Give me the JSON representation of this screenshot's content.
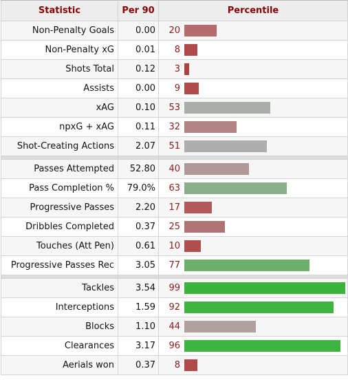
{
  "table": {
    "headers": {
      "statistic": "Statistic",
      "per90": "Per 90",
      "percentile": "Percentile"
    },
    "groups": [
      [
        {
          "stat": "Non-Penalty Goals",
          "per90": "0.00",
          "percentile": 20,
          "bar_color": "#b36b6b"
        },
        {
          "stat": "Non-Penalty xG",
          "per90": "0.01",
          "percentile": 8,
          "bar_color": "#b04a4a"
        },
        {
          "stat": "Shots Total",
          "per90": "0.12",
          "percentile": 3,
          "bar_color": "#ad4141"
        },
        {
          "stat": "Assists",
          "per90": "0.00",
          "percentile": 9,
          "bar_color": "#b04b4b"
        },
        {
          "stat": "xAG",
          "per90": "0.10",
          "percentile": 53,
          "bar_color": "#a9aea9"
        },
        {
          "stat": "npxG + xAG",
          "per90": "0.11",
          "percentile": 32,
          "bar_color": "#b08484"
        },
        {
          "stat": "Shot-Creating Actions",
          "per90": "2.07",
          "percentile": 51,
          "bar_color": "#adadad"
        }
      ],
      [
        {
          "stat": "Passes Attempted",
          "per90": "52.80",
          "percentile": 40,
          "bar_color": "#b09898"
        },
        {
          "stat": "Pass Completion %",
          "per90": "79.0%",
          "percentile": 63,
          "bar_color": "#8bae8b"
        },
        {
          "stat": "Progressive Passes",
          "per90": "2.20",
          "percentile": 17,
          "bar_color": "#b25a5a"
        },
        {
          "stat": "Dribbles Completed",
          "per90": "0.37",
          "percentile": 25,
          "bar_color": "#b07272"
        },
        {
          "stat": "Touches (Att Pen)",
          "per90": "0.61",
          "percentile": 10,
          "bar_color": "#b04d4d"
        },
        {
          "stat": "Progressive Passes Rec",
          "per90": "3.05",
          "percentile": 77,
          "bar_color": "#6cb06c"
        }
      ],
      [
        {
          "stat": "Tackles",
          "per90": "3.54",
          "percentile": 99,
          "bar_color": "#3cb43c"
        },
        {
          "stat": "Interceptions",
          "per90": "1.59",
          "percentile": 92,
          "bar_color": "#40b440"
        },
        {
          "stat": "Blocks",
          "per90": "1.10",
          "percentile": 44,
          "bar_color": "#b0a0a0"
        },
        {
          "stat": "Clearances",
          "per90": "3.17",
          "percentile": 96,
          "bar_color": "#3db43d"
        },
        {
          "stat": "Aerials won",
          "per90": "0.37",
          "percentile": 8,
          "bar_color": "#b04a4a"
        }
      ]
    ]
  }
}
